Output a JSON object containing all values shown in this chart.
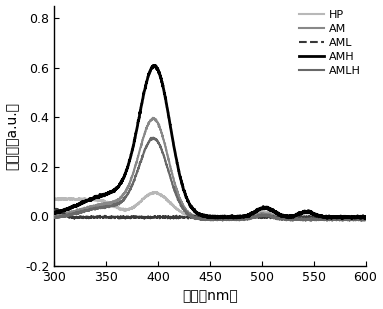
{
  "title": "",
  "xlabel": "波长（nm）",
  "ylabel": "吸光度（a.u.）",
  "xlim": [
    300,
    600
  ],
  "ylim": [
    -0.2,
    0.85
  ],
  "xticks": [
    300,
    350,
    400,
    450,
    500,
    550,
    600
  ],
  "yticks": [
    -0.2,
    0.0,
    0.2,
    0.4,
    0.6,
    0.8
  ],
  "series": {
    "HP": {
      "color": "#b8b8b8",
      "linestyle": "-",
      "linewidth": 1.5,
      "zorder": 2
    },
    "AM": {
      "color": "#888888",
      "linestyle": "-",
      "linewidth": 1.5,
      "zorder": 3
    },
    "AML": {
      "color": "#383838",
      "linestyle": "--",
      "linewidth": 1.5,
      "zorder": 4
    },
    "AMH": {
      "color": "#000000",
      "linestyle": "-",
      "linewidth": 2.0,
      "zorder": 6
    },
    "AMLH": {
      "color": "#686868",
      "linestyle": "-",
      "linewidth": 1.5,
      "zorder": 5
    }
  },
  "background_color": "#ffffff",
  "figsize": [
    3.83,
    3.09
  ],
  "dpi": 100
}
